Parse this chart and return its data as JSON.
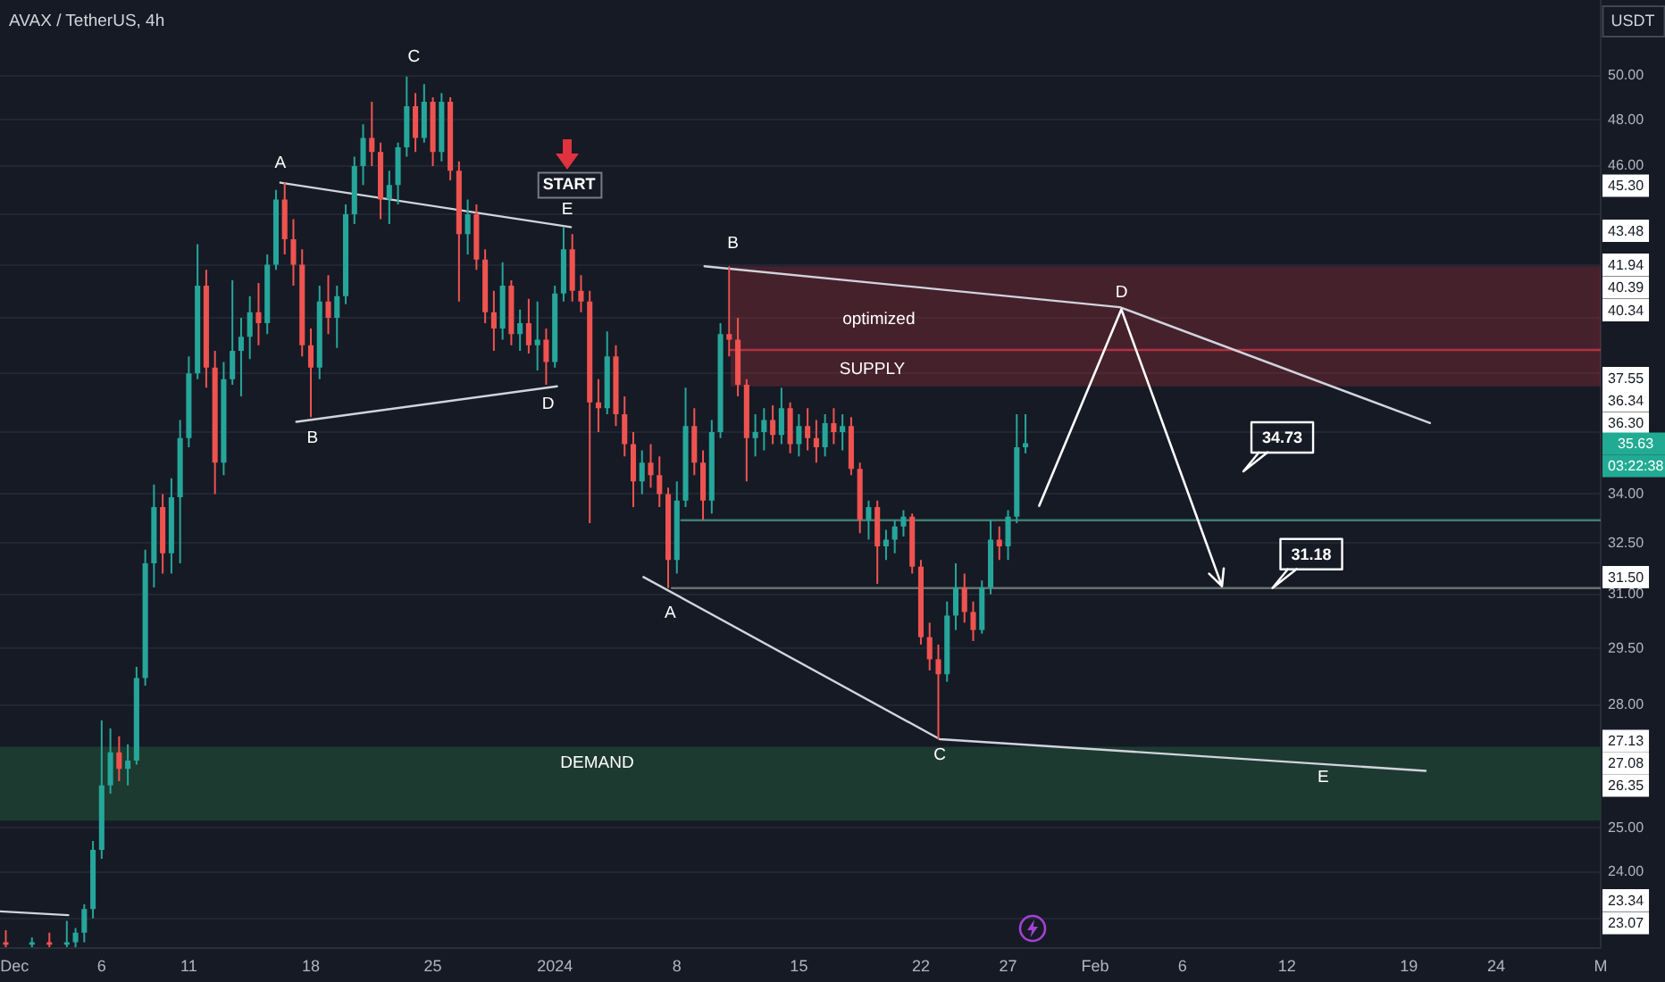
{
  "chart_data": {
    "type": "candlestick",
    "title": "AVAX / TetherUS, 4h",
    "ylabel": "USDT",
    "x": [
      "2023-11-30T12:00",
      "2023-12-02T00:00",
      "2023-12-03T00:00",
      "2023-12-04T00:00",
      "2023-12-04T12:00",
      "2023-12-05T00:00",
      "2023-12-05T12:00",
      "2023-12-06T00:00",
      "2023-12-06T12:00",
      "2023-12-07T00:00",
      "2023-12-07T12:00",
      "2023-12-08T00:00",
      "2023-12-08T12:00",
      "2023-12-09T00:00",
      "2023-12-09T12:00",
      "2023-12-10T00:00",
      "2023-12-10T12:00",
      "2023-12-11T00:00",
      "2023-12-11T12:00",
      "2023-12-12T00:00",
      "2023-12-12T12:00",
      "2023-12-13T00:00",
      "2023-12-13T12:00",
      "2023-12-14T00:00",
      "2023-12-14T12:00",
      "2023-12-15T00:00",
      "2023-12-15T12:00",
      "2023-12-16T00:00",
      "2023-12-16T12:00",
      "2023-12-17T00:00",
      "2023-12-17T12:00",
      "2023-12-18T00:00",
      "2023-12-18T12:00",
      "2023-12-19T00:00",
      "2023-12-19T12:00",
      "2023-12-20T00:00",
      "2023-12-20T12:00",
      "2023-12-21T00:00",
      "2023-12-21T12:00",
      "2023-12-22T00:00",
      "2023-12-22T12:00",
      "2023-12-23T00:00",
      "2023-12-23T12:00",
      "2023-12-24T00:00",
      "2023-12-24T12:00",
      "2023-12-25T00:00",
      "2023-12-25T12:00",
      "2023-12-26T00:00",
      "2023-12-26T12:00",
      "2023-12-27T00:00",
      "2023-12-27T12:00",
      "2023-12-28T00:00",
      "2023-12-28T12:00",
      "2023-12-29T00:00",
      "2023-12-29T12:00",
      "2023-12-30T00:00",
      "2023-12-30T12:00",
      "2023-12-31T00:00",
      "2023-12-31T12:00",
      "2024-01-01T00:00",
      "2024-01-01T12:00",
      "2024-01-02T00:00",
      "2024-01-02T12:00",
      "2024-01-03T00:00",
      "2024-01-03T12:00",
      "2024-01-04T00:00",
      "2024-01-04T12:00",
      "2024-01-05T00:00",
      "2024-01-05T12:00",
      "2024-01-06T00:00",
      "2024-01-06T12:00",
      "2024-01-07T00:00",
      "2024-01-07T12:00",
      "2024-01-08T00:00",
      "2024-01-08T12:00",
      "2024-01-09T00:00",
      "2024-01-09T12:00",
      "2024-01-10T00:00",
      "2024-01-10T12:00",
      "2024-01-11T00:00",
      "2024-01-11T12:00",
      "2024-01-12T00:00",
      "2024-01-12T12:00",
      "2024-01-13T00:00",
      "2024-01-13T12:00",
      "2024-01-14T00:00",
      "2024-01-14T12:00",
      "2024-01-15T00:00",
      "2024-01-15T12:00",
      "2024-01-16T00:00",
      "2024-01-16T12:00",
      "2024-01-17T00:00",
      "2024-01-17T12:00",
      "2024-01-18T00:00",
      "2024-01-18T12:00",
      "2024-01-19T00:00",
      "2024-01-19T12:00",
      "2024-01-20T00:00",
      "2024-01-20T12:00",
      "2024-01-21T00:00",
      "2024-01-21T12:00",
      "2024-01-22T00:00",
      "2024-01-22T12:00",
      "2024-01-23T00:00",
      "2024-01-23T12:00",
      "2024-01-24T00:00",
      "2024-01-24T12:00",
      "2024-01-25T00:00",
      "2024-01-25T12:00",
      "2024-01-26T00:00",
      "2024-01-26T12:00",
      "2024-01-27T00:00",
      "2024-01-27T12:00",
      "2024-01-28T00:00"
    ],
    "ohlc": [
      [
        22.5,
        22.75,
        22.4,
        22.45
      ],
      [
        22.45,
        22.6,
        22.4,
        22.5
      ],
      [
        22.5,
        22.7,
        22.4,
        22.45
      ],
      [
        22.45,
        22.95,
        22.4,
        22.5
      ],
      [
        22.5,
        22.8,
        22.4,
        22.7
      ],
      [
        22.7,
        23.3,
        22.5,
        23.2
      ],
      [
        23.2,
        24.7,
        23.0,
        24.5
      ],
      [
        24.5,
        27.6,
        24.3,
        26.0
      ],
      [
        26.0,
        27.4,
        25.8,
        26.8
      ],
      [
        26.8,
        27.2,
        26.1,
        26.4
      ],
      [
        26.4,
        27.0,
        26.0,
        26.6
      ],
      [
        26.6,
        29.0,
        26.5,
        28.7
      ],
      [
        28.7,
        32.3,
        28.5,
        31.9
      ],
      [
        31.9,
        34.3,
        31.2,
        33.6
      ],
      [
        33.6,
        34.0,
        31.6,
        32.2
      ],
      [
        32.2,
        34.5,
        31.6,
        33.9
      ],
      [
        33.9,
        36.4,
        31.9,
        35.8
      ],
      [
        35.8,
        38.6,
        35.5,
        38.0
      ],
      [
        38.0,
        42.8,
        37.8,
        41.2
      ],
      [
        41.2,
        41.8,
        37.5,
        38.2
      ],
      [
        38.2,
        38.8,
        34.0,
        35.0
      ],
      [
        35.0,
        38.4,
        34.6,
        37.8
      ],
      [
        37.8,
        41.4,
        37.6,
        38.8
      ],
      [
        38.8,
        40.0,
        37.2,
        39.3
      ],
      [
        39.3,
        40.8,
        38.5,
        40.2
      ],
      [
        40.2,
        41.3,
        39.0,
        39.8
      ],
      [
        39.8,
        42.4,
        39.4,
        42.0
      ],
      [
        42.0,
        45.0,
        41.8,
        44.6
      ],
      [
        44.6,
        45.3,
        42.4,
        43.0
      ],
      [
        43.0,
        43.8,
        41.2,
        42.0
      ],
      [
        42.0,
        42.6,
        38.6,
        39.0
      ],
      [
        39.0,
        39.6,
        36.5,
        38.2
      ],
      [
        38.2,
        41.2,
        37.8,
        40.6
      ],
      [
        40.6,
        41.6,
        39.4,
        40.0
      ],
      [
        40.0,
        41.2,
        38.9,
        40.8
      ],
      [
        40.8,
        44.4,
        40.5,
        44.0
      ],
      [
        44.0,
        46.4,
        43.6,
        46.0
      ],
      [
        46.0,
        47.8,
        45.2,
        47.2
      ],
      [
        47.2,
        48.8,
        46.0,
        46.6
      ],
      [
        46.6,
        47.0,
        43.8,
        44.6
      ],
      [
        44.6,
        45.8,
        43.6,
        45.2
      ],
      [
        45.2,
        47.0,
        44.4,
        46.8
      ],
      [
        46.8,
        49.95,
        46.4,
        48.6
      ],
      [
        48.6,
        49.2,
        46.6,
        47.2
      ],
      [
        47.2,
        49.6,
        47.0,
        48.8
      ],
      [
        48.8,
        49.0,
        46.0,
        46.6
      ],
      [
        46.6,
        49.2,
        46.2,
        48.8
      ],
      [
        48.8,
        49.0,
        45.4,
        45.8
      ],
      [
        45.8,
        46.2,
        40.6,
        43.2
      ],
      [
        43.2,
        44.6,
        42.4,
        44.0
      ],
      [
        44.0,
        44.4,
        41.8,
        42.2
      ],
      [
        42.2,
        42.6,
        39.8,
        40.2
      ],
      [
        40.2,
        41.0,
        38.8,
        39.6
      ],
      [
        39.6,
        42.1,
        39.2,
        41.2
      ],
      [
        41.2,
        41.4,
        39.0,
        39.4
      ],
      [
        39.4,
        40.3,
        38.8,
        39.8
      ],
      [
        39.8,
        40.7,
        38.7,
        39.0
      ],
      [
        39.0,
        40.6,
        38.1,
        39.2
      ],
      [
        39.2,
        39.6,
        37.6,
        38.4
      ],
      [
        38.4,
        41.2,
        38.2,
        40.9
      ],
      [
        40.9,
        43.48,
        40.6,
        42.6
      ],
      [
        42.6,
        43.2,
        40.6,
        41.0
      ],
      [
        41.0,
        41.6,
        40.2,
        40.6
      ],
      [
        40.6,
        41.0,
        33.1,
        37.0
      ],
      [
        37.0,
        37.8,
        36.0,
        36.8
      ],
      [
        36.8,
        39.5,
        36.6,
        38.6
      ],
      [
        38.6,
        39.0,
        36.2,
        36.6
      ],
      [
        36.6,
        37.2,
        35.2,
        35.6
      ],
      [
        35.6,
        36.0,
        33.6,
        34.4
      ],
      [
        34.4,
        35.4,
        34.0,
        35.0
      ],
      [
        35.0,
        35.6,
        34.2,
        34.6
      ],
      [
        34.6,
        35.2,
        33.6,
        34.0
      ],
      [
        34.0,
        34.2,
        31.18,
        32.0
      ],
      [
        32.0,
        34.4,
        31.6,
        33.8
      ],
      [
        33.8,
        37.5,
        33.6,
        36.2
      ],
      [
        36.2,
        36.8,
        34.6,
        35.0
      ],
      [
        35.0,
        35.4,
        33.2,
        33.8
      ],
      [
        33.8,
        36.4,
        33.4,
        36.0
      ],
      [
        36.0,
        39.8,
        35.8,
        39.4
      ],
      [
        39.4,
        41.94,
        38.6,
        39.2
      ],
      [
        39.2,
        40.0,
        37.2,
        37.6
      ],
      [
        37.6,
        37.8,
        34.4,
        35.8
      ],
      [
        35.8,
        36.6,
        35.2,
        36.0
      ],
      [
        36.0,
        36.8,
        35.4,
        36.4
      ],
      [
        36.4,
        36.9,
        35.6,
        35.9
      ],
      [
        35.9,
        37.5,
        35.6,
        36.8
      ],
      [
        36.8,
        37.0,
        35.3,
        35.6
      ],
      [
        35.6,
        36.6,
        35.2,
        36.2
      ],
      [
        36.2,
        36.8,
        35.4,
        35.8
      ],
      [
        35.8,
        36.4,
        35.0,
        35.5
      ],
      [
        35.5,
        36.6,
        35.2,
        36.3
      ],
      [
        36.3,
        36.8,
        35.6,
        36.0
      ],
      [
        36.0,
        36.6,
        35.4,
        36.2
      ],
      [
        36.2,
        36.5,
        34.6,
        34.8
      ],
      [
        34.8,
        35.0,
        32.8,
        33.2
      ],
      [
        33.2,
        33.8,
        32.6,
        33.6
      ],
      [
        33.6,
        33.8,
        31.3,
        32.4
      ],
      [
        32.4,
        32.9,
        32.0,
        32.6
      ],
      [
        32.6,
        33.2,
        32.2,
        33.0
      ],
      [
        33.0,
        33.5,
        32.7,
        33.3
      ],
      [
        33.3,
        33.4,
        31.6,
        31.8
      ],
      [
        31.8,
        32.0,
        29.6,
        29.8
      ],
      [
        29.8,
        30.2,
        28.9,
        29.2
      ],
      [
        29.2,
        29.6,
        27.13,
        28.8
      ],
      [
        28.8,
        30.8,
        28.6,
        30.4
      ],
      [
        30.4,
        31.9,
        30.0,
        31.2
      ],
      [
        31.2,
        31.6,
        30.2,
        30.5
      ],
      [
        30.5,
        30.8,
        29.7,
        30.0
      ],
      [
        30.0,
        31.4,
        29.9,
        31.2
      ],
      [
        31.2,
        33.2,
        31.0,
        32.6
      ],
      [
        32.6,
        33.0,
        32.0,
        32.4
      ],
      [
        32.4,
        33.5,
        32.0,
        33.3
      ],
      [
        33.3,
        36.6,
        33.1,
        35.5
      ],
      [
        35.5,
        36.6,
        35.3,
        35.63
      ]
    ],
    "colors": [
      "#ef5350",
      "#26a69a",
      "#ef5350",
      "#26a69a",
      "#26a69a",
      "#26a69a",
      "#26a69a",
      "#26a69a",
      "#26a69a",
      "#ef5350",
      "#26a69a",
      "#26a69a",
      "#26a69a",
      "#26a69a",
      "#ef5350",
      "#26a69a",
      "#26a69a",
      "#26a69a",
      "#26a69a",
      "#ef5350",
      "#ef5350",
      "#26a69a",
      "#26a69a",
      "#26a69a",
      "#26a69a",
      "#ef5350",
      "#26a69a",
      "#26a69a",
      "#ef5350",
      "#ef5350",
      "#ef5350",
      "#ef5350",
      "#26a69a",
      "#ef5350",
      "#26a69a",
      "#26a69a",
      "#26a69a",
      "#26a69a",
      "#ef5350",
      "#ef5350",
      "#26a69a",
      "#26a69a",
      "#26a69a",
      "#ef5350",
      "#26a69a",
      "#ef5350",
      "#26a69a",
      "#ef5350",
      "#ef5350",
      "#26a69a",
      "#ef5350",
      "#ef5350",
      "#ef5350",
      "#26a69a",
      "#ef5350",
      "#26a69a",
      "#ef5350",
      "#26a69a",
      "#ef5350",
      "#26a69a",
      "#26a69a",
      "#ef5350",
      "#ef5350",
      "#ef5350",
      "#ef5350",
      "#26a69a",
      "#ef5350",
      "#ef5350",
      "#ef5350",
      "#26a69a",
      "#ef5350",
      "#ef5350",
      "#ef5350",
      "#26a69a",
      "#26a69a",
      "#ef5350",
      "#ef5350",
      "#26a69a",
      "#26a69a",
      "#ef5350",
      "#ef5350",
      "#ef5350",
      "#26a69a",
      "#26a69a",
      "#ef5350",
      "#26a69a",
      "#ef5350",
      "#26a69a",
      "#ef5350",
      "#ef5350",
      "#26a69a",
      "#ef5350",
      "#26a69a",
      "#ef5350",
      "#ef5350",
      "#26a69a",
      "#ef5350",
      "#26a69a",
      "#26a69a",
      "#26a69a",
      "#ef5350",
      "#ef5350",
      "#ef5350",
      "#ef5350",
      "#26a69a",
      "#26a69a",
      "#ef5350",
      "#ef5350",
      "#26a69a",
      "#26a69a",
      "#ef5350",
      "#26a69a",
      "#26a69a",
      "#26a69a"
    ],
    "series": [
      {
        "type": "line",
        "color": "#d1d4dc",
        "x": [
          "2023-12-16T06:00",
          "2024-01-01T22:00"
        ],
        "values": [
          45.3,
          43.48
        ]
      },
      {
        "type": "line",
        "color": "#d1d4dc",
        "x": [
          "2023-12-17T04:00",
          "2024-01-01T03:00"
        ],
        "values": [
          36.34,
          37.55
        ]
      },
      {
        "type": "line",
        "color": "#d1d4dc",
        "x": [
          "2024-01-09T14:00",
          "2024-02-02T10:00",
          "2024-02-20T05:00"
        ],
        "values": [
          41.94,
          40.39,
          36.3
        ]
      },
      {
        "type": "line",
        "color": "#d1d4dc",
        "x": [
          "2024-01-06T02:00",
          "2024-01-23T02:00",
          "2024-02-19T23:00"
        ],
        "values": [
          31.5,
          27.13,
          26.35
        ]
      },
      {
        "type": "line",
        "color": "#d1d4dc",
        "x": [
          "2023-11-30T04:00",
          "2023-12-04T02:00"
        ],
        "values": [
          23.15,
          23.07
        ]
      },
      {
        "type": "line",
        "color": "#3f7d72",
        "x": [
          "2024-01-08T06:00",
          "2024-03-01T00:00"
        ],
        "values": [
          33.19,
          33.19
        ]
      },
      {
        "type": "line",
        "color": "#66716f",
        "x": [
          "2024-01-07T17:00",
          "2024-03-01T00:00"
        ],
        "values": [
          31.18,
          31.18
        ]
      },
      {
        "type": "line",
        "color": "#b2313f",
        "x": [
          "2024-01-11T02:00",
          "2024-03-01T00:00"
        ],
        "values": [
          38.83,
          38.83
        ],
        "lower": [
          37.55,
          37.55
        ],
        "upper": [
          41.94,
          41.94
        ]
      }
    ],
    "bands": [
      {
        "axis": "y",
        "from": 25.17,
        "to": 26.94,
        "color": "#1d3a30",
        "label": "DEMAND"
      }
    ],
    "annotations": [
      {
        "text": "A",
        "x": "2023-12-16T06:00",
        "y": 45.3
      },
      {
        "text": "B",
        "x": "2023-12-17T04:00",
        "y": 36.34
      },
      {
        "text": "C",
        "x": "2023-12-23T12:00",
        "y": 49.95
      },
      {
        "text": "D",
        "x": "2024-01-01T03:00",
        "y": 37.55
      },
      {
        "text": "E",
        "x": "2024-01-01T22:00",
        "y": 43.48
      },
      {
        "text": "START",
        "x": "2024-01-01T22:00",
        "y": 43.48
      },
      {
        "text": "B",
        "x": "2024-01-09T14:00",
        "y": 41.94
      },
      {
        "text": "A",
        "x": "2024-01-06T02:00",
        "y": 31.5
      },
      {
        "text": "C",
        "x": "2024-01-23T02:00",
        "y": 27.13
      },
      {
        "text": "D",
        "x": "2024-02-02T10:00",
        "y": 40.39
      },
      {
        "text": "E",
        "x": "2024-02-14T02:00",
        "y": 26.53
      },
      {
        "text": "optimized",
        "x": "2024-01-19T14:00",
        "y": 38.83
      },
      {
        "text": "SUPPLY",
        "x": "2024-01-19T05:00",
        "y": 38.83
      },
      "34.73",
      {
        "text": "31.18",
        "x": "2024-02-11T04:00",
        "y": 31.18
      },
      "45.30",
      "43.48",
      "41.94",
      "40.39",
      "40.34",
      "37.55",
      "36.34",
      "36.30",
      "35.63",
      "03:22:38",
      "31.50",
      "27.13",
      "27.08",
      "26.35",
      "23.34",
      "23.07"
    ],
    "xlim": [
      "2023-11-30T04:00",
      "2024-03-01T00:00"
    ],
    "ylim": [
      22.38,
      53.6
    ],
    "xticks": [
      {
        "value": "2023-12-01",
        "label": "Dec"
      },
      {
        "value": "2023-12-06",
        "label": "6"
      },
      {
        "value": "2023-12-11",
        "label": "11"
      },
      {
        "value": "2023-12-18",
        "label": "18"
      },
      {
        "value": "2023-12-25",
        "label": "25"
      },
      {
        "value": "2024-01-01",
        "label": "2024"
      },
      {
        "value": "2024-01-08",
        "label": "8"
      },
      {
        "value": "2024-01-15",
        "label": "15"
      },
      {
        "value": "2024-01-22",
        "label": "22"
      },
      {
        "value": "2024-01-27",
        "label": "27"
      },
      {
        "value": "2024-02-01",
        "label": "Feb"
      },
      {
        "value": "2024-02-06",
        "label": "6"
      },
      {
        "value": "2024-02-12",
        "label": "12"
      },
      {
        "value": "2024-02-19",
        "label": "19"
      },
      {
        "value": "2024-02-24",
        "label": "24"
      },
      {
        "value": "2024-03-01",
        "label": "M"
      }
    ],
    "yticks": [
      {
        "value": 50,
        "label": "50.00"
      },
      {
        "value": 48,
        "label": "48.00"
      },
      {
        "value": 46,
        "label": "46.00"
      },
      {
        "value": 44,
        "label": null
      },
      {
        "value": 42,
        "label": null
      },
      {
        "value": 40,
        "label": null
      },
      {
        "value": 38,
        "label": null
      },
      {
        "value": 36,
        "label": null
      },
      {
        "value": 34,
        "label": "34.00"
      },
      {
        "value": 32.5,
        "label": "32.50"
      },
      {
        "value": 31,
        "label": "31.00"
      },
      {
        "value": 29.5,
        "label": "29.50"
      },
      {
        "value": 28,
        "label": "28.00"
      },
      {
        "value": 25,
        "label": "25.00"
      },
      {
        "value": 24,
        "label": "24.00"
      },
      {
        "value": 23,
        "label": null
      }
    ],
    "log": true,
    "grid": "y",
    "legend": false
  }
}
